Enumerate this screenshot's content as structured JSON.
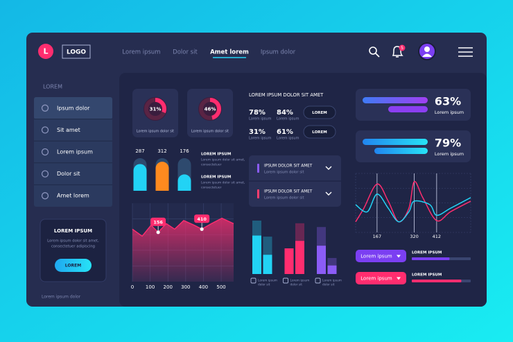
{
  "header": {
    "logo_letter": "L",
    "logo": "LOGO",
    "nav": [
      "Lorem ipsum",
      "Dolor sit",
      "Amet lorem",
      "Ipsum dolor"
    ],
    "active_nav": 2,
    "notifications": 5
  },
  "sidebar": {
    "heading": "LOREM",
    "menu": [
      "Ipsum dolor",
      "Sit amet",
      "Lorem ipsum",
      "Dolor sit",
      "Amet lorem"
    ],
    "active_item": 0,
    "card": {
      "title": "LOREM IPSUM",
      "text": [
        "Lorem ipsum dolor sit amet,",
        "consectetuer adipiscing"
      ],
      "button": "LOREM"
    },
    "footer": "Lorem ipsum dolor"
  },
  "donuts": [
    {
      "value": 31,
      "label": "31%",
      "caption": "Lorem ipsum dolor sit"
    },
    {
      "value": 46,
      "label": "46%",
      "caption": "Lorem ipsum dolor sit"
    }
  ],
  "capsules": {
    "values": [
      287,
      312,
      176
    ],
    "colors": [
      "#22d3f5",
      "#ff8a1f",
      "#22d3f5"
    ],
    "ylim": [
      0,
      350
    ]
  },
  "capsule_notes": [
    {
      "title": "LOREM IPSUM",
      "text": [
        "Lorem ipsum dolor sit amet,",
        "consectetuer"
      ]
    },
    {
      "title": "LOREM IPSUM",
      "text": [
        "Lorem ipsum dolor sit amet,",
        "consectetuer"
      ]
    }
  ],
  "area_chart": {
    "type": "area",
    "color": "#ff2d6f",
    "x": [
      0,
      55,
      105,
      145,
      191,
      238,
      289,
      348,
      391,
      445,
      504,
      570
    ],
    "values": [
      67,
      58,
      72,
      63,
      74,
      67,
      78,
      72,
      67,
      74,
      81,
      74
    ],
    "xlim": [
      0,
      570
    ],
    "ylim": [
      0,
      100
    ],
    "xticks": [
      0,
      100,
      200,
      300,
      400,
      500
    ],
    "callouts": [
      {
        "x": 145,
        "y": 63,
        "callout": 156
      },
      {
        "x": 391,
        "y": 67,
        "callout": 410
      }
    ]
  },
  "stats": {
    "title": "LOREM IPSUM DOLOR SIT AMET",
    "rows": [
      {
        "items": [
          {
            "label": "78%",
            "caption": "Lorem ipsum"
          },
          {
            "label": "84%",
            "caption": "Lorem ipsum"
          }
        ],
        "button": "LOREM"
      },
      {
        "items": [
          {
            "label": "31%",
            "caption": "Lorem ipsum"
          },
          {
            "label": "61%",
            "caption": "Lorem ipsum"
          }
        ],
        "button": "LOREM"
      }
    ]
  },
  "accordion": [
    {
      "title": "IPSUM DOLOR  SIT AMET",
      "text": "Lorem ipsum dolor sit",
      "color": "#8b5cf6"
    },
    {
      "title": "IPSUM DOLOR  SIT AMET",
      "text": "Lorem ipsum dolor sit",
      "color": "#ff3d6e"
    }
  ],
  "grouped_bars": {
    "ylim": [
      0,
      100
    ],
    "groups": [
      {
        "caption": [
          "Lorem ipsum",
          "dolor sit"
        ],
        "color": "#22d3f5",
        "bars": [
          {
            "total": 100,
            "filled": 72
          },
          {
            "total": 70,
            "filled": 36
          }
        ]
      },
      {
        "caption": [
          "Lorem ipsum",
          "dolor sit"
        ],
        "color": "#ff2d6f",
        "bars": [
          {
            "total": 48,
            "filled": 48
          },
          {
            "total": 95,
            "filled": 62
          }
        ]
      },
      {
        "caption": [
          "Lorem ipsum",
          "dolor sit"
        ],
        "color": "#8b5cf6",
        "bars": [
          {
            "total": 88,
            "filled": 53
          },
          {
            "total": 30,
            "filled": 16
          }
        ]
      }
    ]
  },
  "progress_cards": [
    {
      "label": "63%",
      "caption": "Lorem ipsum"
    },
    {
      "label": "79%",
      "caption": "Lorem ipsum"
    }
  ],
  "line_chart": {
    "type": "line",
    "xlim": [
      79,
      552
    ],
    "ylim": [
      0,
      100
    ],
    "xticks": [
      167,
      320,
      412
    ],
    "series": [
      {
        "color": "#ff2d6f",
        "x": [
          79,
          113,
          167,
          213,
          256,
          298,
          320,
          355,
          412,
          469,
          552
        ],
        "values": [
          18,
          41,
          82,
          53,
          18,
          41,
          86,
          59,
          20,
          35,
          53
        ]
      },
      {
        "color": "#22d3f5",
        "x": [
          79,
          127,
          167,
          213,
          256,
          298,
          320,
          384,
          412,
          469,
          552
        ],
        "values": [
          47,
          35,
          65,
          41,
          18,
          35,
          53,
          47,
          29,
          41,
          59
        ]
      }
    ]
  },
  "actions": [
    {
      "button": "Lorem ipsum",
      "color": "#7b3ff2",
      "title": "LOREM IPSUM",
      "progress": 64
    },
    {
      "button": "Lorem ipsum",
      "color": "#ff2d6f",
      "title": "LOREM IPSUM",
      "progress": 84
    }
  ]
}
